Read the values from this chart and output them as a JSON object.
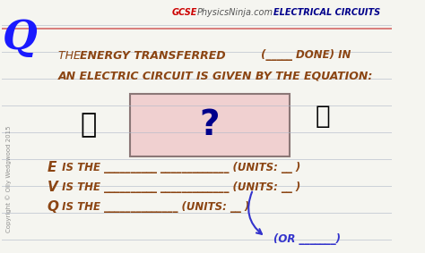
{
  "bg_color": "#f5f5f0",
  "line_color": "#b0b8c8",
  "title_site": "GCSEPhysicsNinja.com",
  "title_site_color_gcse": "#cc0000",
  "title_site_color_rest": "#555555",
  "top_right_text": "ELECTRICAL CIRCUITS",
  "top_right_color": "#00008B",
  "q_color": "#1a1aff",
  "main_text_color": "#8B4513",
  "line1_normal": "THE ",
  "line1_bold": "ENERGY TRANSFERRED",
  "line1_end": " (_____ DONE) IN",
  "line2": "AN ELECTRIC CIRCUIT IS GIVEN BY THE EQUATION:",
  "question_mark": "?",
  "question_mark_color": "#00008B",
  "box_fill": "#f0d0d0",
  "box_edge": "#8B7777",
  "e_label": "E",
  "v_label": "V",
  "q_label": "Q",
  "e_text": " IS THE _____________ _____________ (UNITS: __ )",
  "v_text": " IS THE _____________ _____________ (UNITS: __ )",
  "q_text": " IS THE _____________ (UNITS: __ )",
  "or_text": "(OR _______)",
  "arrow_color": "#3333cc",
  "copyright_text": "Copyright © Olly Wedgwood 2015"
}
